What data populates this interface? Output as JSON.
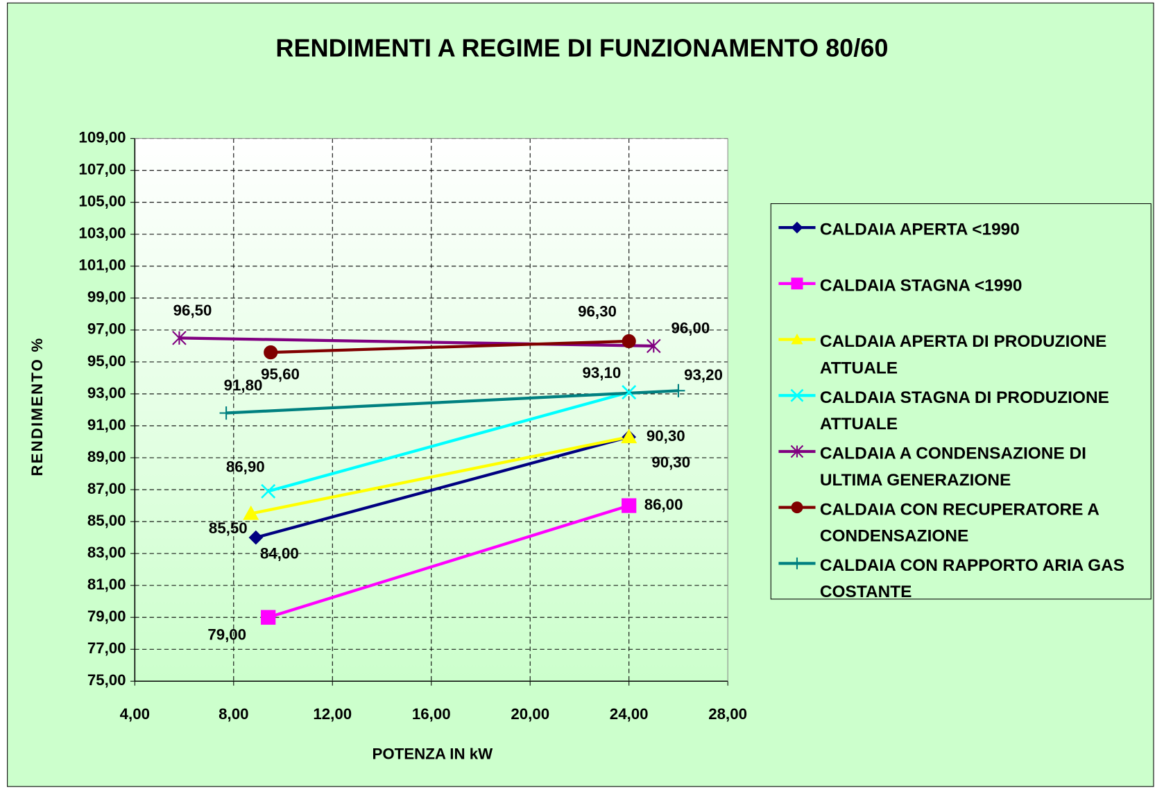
{
  "chart_data": {
    "type": "line",
    "title": "RENDIMENTI A REGIME DI FUNZIONAMENTO 80/60",
    "x_label": "POTENZA IN kW",
    "y_label": "RENDIMENTO %",
    "xlim": [
      4,
      28
    ],
    "xticks": [
      {
        "value": 4,
        "label": "4,00"
      },
      {
        "value": 8,
        "label": "8,00"
      },
      {
        "value": 12,
        "label": "12,00"
      },
      {
        "value": 16,
        "label": "16,00"
      },
      {
        "value": 20,
        "label": "20,00"
      },
      {
        "value": 24,
        "label": "24,00"
      },
      {
        "value": 28,
        "label": "28,00"
      }
    ],
    "ylim": [
      75,
      109
    ],
    "yticks": [
      {
        "value": 75,
        "label": "75,00"
      },
      {
        "value": 77,
        "label": "77,00"
      },
      {
        "value": 79,
        "label": "79,00"
      },
      {
        "value": 81,
        "label": "81,00"
      },
      {
        "value": 83,
        "label": "83,00"
      },
      {
        "value": 85,
        "label": "85,00"
      },
      {
        "value": 87,
        "label": "87,00"
      },
      {
        "value": 89,
        "label": "89,00"
      },
      {
        "value": 91,
        "label": "91,00"
      },
      {
        "value": 93,
        "label": "93,00"
      },
      {
        "value": 95,
        "label": "95,00"
      },
      {
        "value": 97,
        "label": "97,00"
      },
      {
        "value": 99,
        "label": "99,00"
      },
      {
        "value": 101,
        "label": "101,00"
      },
      {
        "value": 103,
        "label": "103,00"
      },
      {
        "value": 105,
        "label": "105,00"
      },
      {
        "value": 107,
        "label": "107,00"
      },
      {
        "value": 109,
        "label": "109,00"
      }
    ],
    "grid": true,
    "legend": "right",
    "series": [
      {
        "name": "CALDAIA APERTA <1990",
        "color": "#000080",
        "marker": "diamond",
        "x": [
          8.9,
          24
        ],
        "values": [
          84.0,
          90.3
        ],
        "value_labels": [
          "84,00",
          "90,30"
        ]
      },
      {
        "name": "CALDAIA STAGNA <1990",
        "color": "#ff00ff",
        "marker": "square",
        "x": [
          9.4,
          24
        ],
        "values": [
          79.0,
          86.0
        ],
        "value_labels": [
          "79,00",
          "86,00"
        ]
      },
      {
        "name": "CALDAIA APERTA DI PRODUZIONE ATTUALE",
        "color": "#ffff00",
        "marker": "triangle",
        "x": [
          8.7,
          24
        ],
        "values": [
          85.5,
          90.3
        ],
        "value_labels": [
          "85,50",
          "90,30"
        ]
      },
      {
        "name": "CALDAIA STAGNA DI PRODUZIONE ATTUALE",
        "color": "#00ffff",
        "marker": "x",
        "x": [
          9.4,
          24
        ],
        "values": [
          86.9,
          93.1
        ],
        "value_labels": [
          "86,90",
          "93,10"
        ]
      },
      {
        "name": "CALDAIA A CONDENSAZIONE DI ULTIMA GENERAZIONE",
        "color": "#800080",
        "marker": "asterisk",
        "x": [
          5.8,
          25
        ],
        "values": [
          96.5,
          96.0
        ],
        "value_labels": [
          "96,50",
          "96,00"
        ]
      },
      {
        "name": "CALDAIA CON RECUPERATORE A CONDENSAZIONE",
        "color": "#800000",
        "marker": "circle",
        "x": [
          9.5,
          24
        ],
        "values": [
          95.6,
          96.3
        ],
        "value_labels": [
          "95,60",
          "96,30"
        ]
      },
      {
        "name": "CALDAIA CON RAPPORTO ARIA GAS COSTANTE",
        "color": "#008080",
        "marker": "plus",
        "x": [
          7.7,
          26
        ],
        "values": [
          91.8,
          93.2
        ],
        "value_labels": [
          "91,80",
          "93,20"
        ]
      }
    ]
  }
}
